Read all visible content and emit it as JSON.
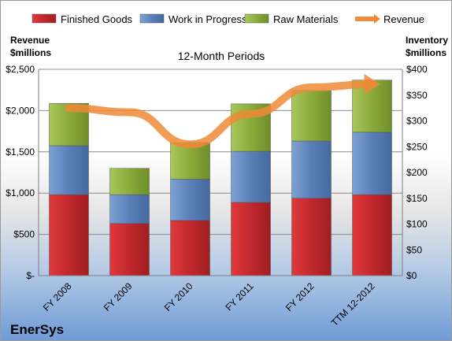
{
  "chart_data": {
    "type": "bar",
    "stacked": true,
    "title": "12-Month Periods",
    "categories": [
      "FY 2008",
      "FY 2009",
      "FY 2010",
      "FY 2011",
      "FY 2012",
      "TTM 12-2012"
    ],
    "series": [
      {
        "name": "Finished Goods",
        "axis": "right",
        "values": [
          157,
          101,
          107,
          142,
          150,
          157
        ],
        "color": "#c0282d"
      },
      {
        "name": "Work in Progress",
        "axis": "right",
        "values": [
          95,
          56,
          80,
          99,
          111,
          121
        ],
        "color": "#5a7fb8"
      },
      {
        "name": "Raw Materials",
        "axis": "right",
        "values": [
          82,
          51,
          71,
          92,
          98,
          101
        ],
        "color": "#8aab3c"
      },
      {
        "name": "Revenue",
        "axis": "left",
        "type": "line",
        "values": [
          2030,
          1980,
          1590,
          1960,
          2280,
          2320
        ],
        "color": "#ef8a36"
      }
    ],
    "left_axis": {
      "label": "Revenue\n$millions",
      "label_lines": [
        "Revenue",
        "$millions"
      ],
      "ylim": [
        0,
        2500
      ],
      "ticks": [
        "$-",
        "$500",
        "$1,000",
        "$1,500",
        "$2,000",
        "$2,500"
      ]
    },
    "right_axis": {
      "label": "Inventory\n$millions",
      "label_lines": [
        "Inventory",
        "$millions"
      ],
      "ylim": [
        0,
        400
      ],
      "ticks": [
        "$0",
        "$50",
        "$100",
        "$150",
        "$200",
        "$250",
        "$300",
        "$350",
        "$400"
      ]
    },
    "grid": true,
    "legend": "top"
  },
  "company": "EnerSys"
}
